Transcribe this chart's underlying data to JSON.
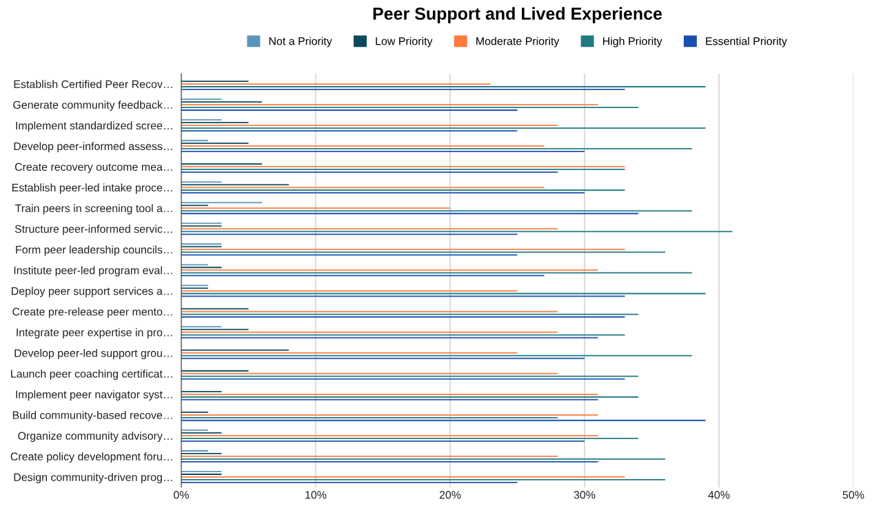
{
  "chart_data": {
    "type": "bar",
    "orientation": "horizontal",
    "title": "Peer Support and Lived Experience",
    "categories": [
      "Establish Certified Peer Recov…",
      "Generate community feedback…",
      "Implement standardized scree…",
      "Develop peer-informed assess…",
      "Create recovery outcome mea…",
      "Establish peer-led intake proce…",
      "Train peers in screening tool a…",
      "Structure peer-informed servic…",
      "Form peer leadership councils…",
      "Institute peer-led program eval…",
      "Deploy peer support services a…",
      "Create pre-release peer mento…",
      "Integrate peer expertise in pro…",
      "Develop peer-led support grou…",
      "Launch peer coaching certificat…",
      "Implement peer navigator syst…",
      "Build community-based recove…",
      "Organize community advisory…",
      "Create policy development foru…",
      "Design community-driven prog…"
    ],
    "series": [
      {
        "name": "Not a Priority",
        "color": "#5b95b8",
        "values": [
          0,
          3,
          3,
          2,
          0,
          3,
          6,
          3,
          3,
          2,
          2,
          0,
          3,
          0,
          0,
          0,
          0,
          2,
          2,
          3
        ]
      },
      {
        "name": "Low Priority",
        "color": "#0b4a5e",
        "values": [
          5,
          6,
          5,
          5,
          6,
          8,
          2,
          3,
          3,
          3,
          2,
          5,
          5,
          8,
          5,
          3,
          2,
          3,
          3,
          3
        ]
      },
      {
        "name": "Moderate Priority",
        "color": "#ff7a3d",
        "values": [
          23,
          31,
          28,
          27,
          33,
          27,
          20,
          28,
          33,
          31,
          25,
          28,
          28,
          25,
          28,
          31,
          31,
          31,
          28,
          33
        ]
      },
      {
        "name": "High Priority",
        "color": "#1f7a82",
        "values": [
          39,
          34,
          39,
          38,
          33,
          33,
          38,
          41,
          36,
          38,
          39,
          34,
          33,
          38,
          34,
          34,
          28,
          34,
          36,
          36
        ]
      },
      {
        "name": "Essential Priority",
        "color": "#1a4fb0",
        "values": [
          33,
          25,
          25,
          30,
          28,
          30,
          34,
          25,
          25,
          27,
          33,
          33,
          31,
          30,
          33,
          31,
          39,
          30,
          31,
          25
        ]
      }
    ],
    "xlim": [
      0,
      50
    ],
    "xticks": [
      {
        "value": 0,
        "label": "0%"
      },
      {
        "value": 10,
        "label": "10%"
      },
      {
        "value": 20,
        "label": "20%"
      },
      {
        "value": 30,
        "label": "30%"
      },
      {
        "value": 40,
        "label": "40%"
      },
      {
        "value": 50,
        "label": "50%"
      }
    ],
    "grid": "x",
    "legend": "top"
  }
}
